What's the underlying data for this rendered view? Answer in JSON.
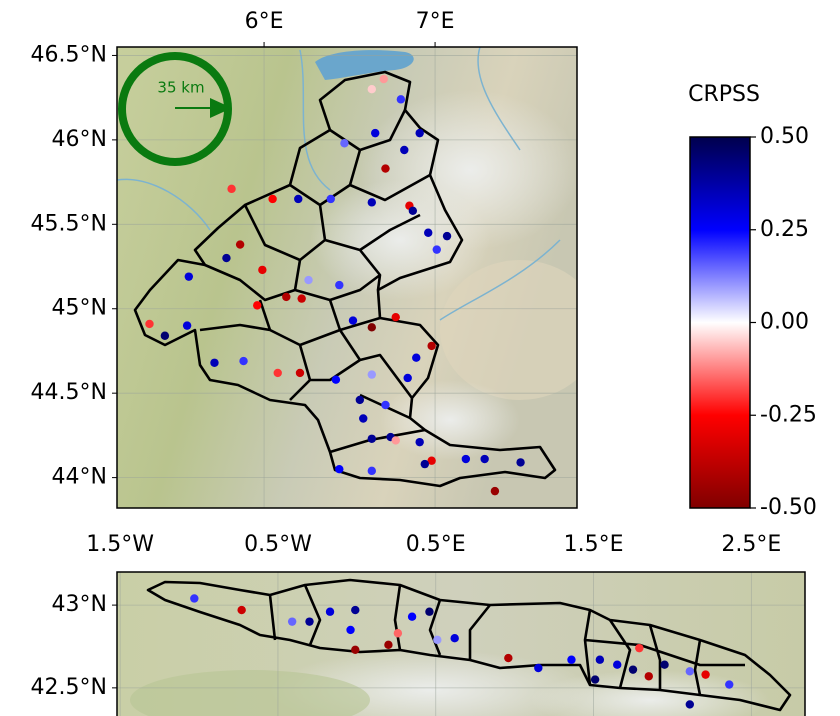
{
  "maps": [
    {
      "xticks": [
        {
          "value": 6,
          "label": "6°E"
        },
        {
          "value": 7,
          "label": "7°E"
        }
      ],
      "yticks": [
        {
          "value": 46.5,
          "label": "46.5°N"
        },
        {
          "value": 46,
          "label": "46°N"
        },
        {
          "value": 45.5,
          "label": "45.5°N"
        },
        {
          "value": 45,
          "label": "45°N"
        },
        {
          "value": 44.5,
          "label": "44.5°N"
        },
        {
          "value": 44,
          "label": "44°N"
        }
      ],
      "xlim": [
        5.14,
        7.83
      ],
      "ylim": [
        43.82,
        46.55
      ],
      "scale_label": "35 km",
      "points": {
        "lon": [
          6.7,
          6.8,
          6.63,
          6.65,
          6.91,
          6.82,
          6.47,
          6.71,
          6.39,
          6.63,
          6.85,
          6.87,
          6.96,
          7.07,
          7.01,
          5.81,
          6.05,
          6.2,
          5.86,
          5.99,
          5.78,
          5.56,
          5.42,
          5.33,
          5.55,
          6.13,
          6.22,
          5.96,
          6.26,
          6.44,
          6.63,
          6.52,
          6.77,
          6.98,
          6.89,
          5.71,
          5.88,
          6.08,
          6.21,
          6.42,
          6.63,
          6.84,
          6.56,
          6.71,
          6.58,
          6.74,
          6.63,
          6.77,
          6.91,
          6.98,
          6.94,
          7.18,
          7.29,
          7.5,
          7.35,
          6.63,
          6.44
        ],
        "lat": [
          46.36,
          46.24,
          46.3,
          46.04,
          46.04,
          45.94,
          45.98,
          45.83,
          45.65,
          45.63,
          45.61,
          45.58,
          45.45,
          45.43,
          45.35,
          45.71,
          45.65,
          45.65,
          45.38,
          45.23,
          45.3,
          45.19,
          44.84,
          44.91,
          44.9,
          45.07,
          45.06,
          45.02,
          45.17,
          45.14,
          44.89,
          44.93,
          44.95,
          44.78,
          44.71,
          44.68,
          44.69,
          44.62,
          44.62,
          44.58,
          44.61,
          44.59,
          44.46,
          44.43,
          44.35,
          44.24,
          44.23,
          44.22,
          44.21,
          44.1,
          44.08,
          44.11,
          44.11,
          44.09,
          43.92,
          44.04,
          44.05
        ],
        "values": [
          -0.1,
          0.2,
          -0.05,
          0.3,
          0.35,
          0.35,
          0.15,
          -0.4,
          0.2,
          0.35,
          -0.3,
          0.4,
          0.35,
          0.4,
          0.2,
          -0.2,
          -0.25,
          0.35,
          -0.4,
          -0.3,
          0.4,
          0.3,
          0.45,
          -0.2,
          0.3,
          -0.4,
          -0.35,
          -0.25,
          0.1,
          0.2,
          -0.5,
          0.3,
          -0.3,
          -0.4,
          0.3,
          0.35,
          0.2,
          -0.2,
          -0.35,
          0.25,
          0.1,
          0.3,
          0.4,
          0.2,
          0.35,
          0.4,
          0.4,
          -0.1,
          0.35,
          -0.3,
          0.4,
          0.3,
          0.35,
          0.4,
          -0.45,
          0.2,
          0.25
        ]
      }
    },
    {
      "xticks": [
        {
          "value": -1.5,
          "label": "1.5°W"
        },
        {
          "value": -0.5,
          "label": "0.5°W"
        },
        {
          "value": 0.5,
          "label": "0.5°E"
        },
        {
          "value": 1.5,
          "label": "1.5°E"
        },
        {
          "value": 2.5,
          "label": "2.5°E"
        }
      ],
      "yticks": [
        {
          "value": 43,
          "label": "43°N"
        },
        {
          "value": 42.5,
          "label": "42.5°N"
        }
      ],
      "xlim": [
        -1.52,
        2.84
      ],
      "ylim": [
        42.33,
        43.2
      ],
      "points": {
        "lon": [
          -1.03,
          -0.73,
          -0.41,
          -0.3,
          -0.17,
          -0.01,
          -0.04,
          -0.01,
          0.2,
          0.26,
          0.35,
          0.46,
          0.51,
          0.62,
          0.96,
          1.15,
          1.36,
          1.54,
          1.65,
          1.75,
          1.85,
          1.95,
          2.11,
          2.21,
          2.11,
          2.36,
          1.51,
          1.79
        ],
        "lat": [
          43.04,
          42.97,
          42.9,
          42.9,
          42.96,
          42.97,
          42.85,
          42.73,
          42.76,
          42.83,
          42.93,
          42.96,
          42.79,
          42.8,
          42.68,
          42.62,
          42.67,
          42.67,
          42.64,
          42.61,
          42.57,
          42.64,
          42.6,
          42.58,
          42.4,
          42.52,
          42.55,
          42.74
        ],
        "values": [
          0.2,
          -0.35,
          0.15,
          0.4,
          0.3,
          0.4,
          0.25,
          -0.45,
          -0.45,
          -0.15,
          0.25,
          0.45,
          0.1,
          0.3,
          -0.4,
          0.3,
          0.25,
          0.35,
          0.3,
          0.45,
          -0.4,
          0.45,
          0.15,
          -0.3,
          0.4,
          0.2,
          0.45,
          -0.2
        ]
      }
    }
  ],
  "colorbar": {
    "title": "CRPSS",
    "cmap": "seismic_r",
    "clim": [
      -0.5,
      0.5
    ],
    "ticks": [
      {
        "value": 0.5,
        "label": "0.50"
      },
      {
        "value": 0.25,
        "label": "0.25"
      },
      {
        "value": 0,
        "label": "0.00"
      },
      {
        "value": -0.25,
        "label": "-0.25"
      },
      {
        "value": -0.5,
        "label": "-0.50"
      }
    ]
  }
}
